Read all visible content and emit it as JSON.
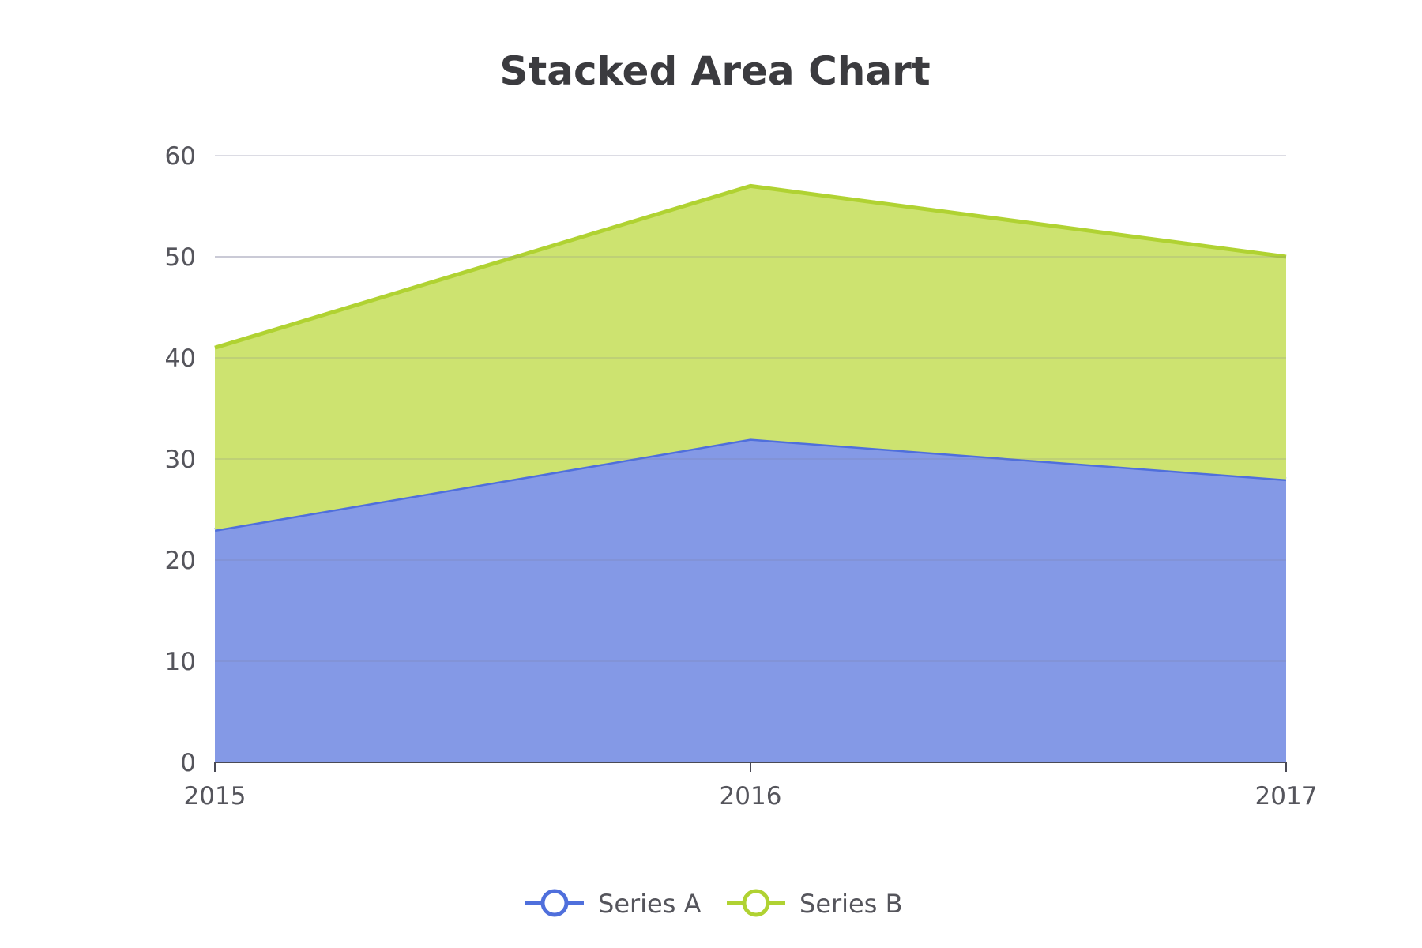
{
  "chart_data": {
    "type": "area",
    "stacked": true,
    "title": "Stacked Area Chart",
    "xlabel": "",
    "ylabel": "",
    "categories": [
      "2015",
      "2016",
      "2017"
    ],
    "series": [
      {
        "name": "Series A",
        "values": [
          23,
          32,
          28
        ],
        "color": "#4f6fdc",
        "fill": "#8499e6"
      },
      {
        "name": "Series B",
        "values": [
          18,
          25,
          22
        ],
        "color": "#b0d232",
        "fill": "#cde370"
      }
    ],
    "ylim": [
      0,
      60
    ],
    "yticks": [
      "0",
      "10",
      "20",
      "30",
      "40",
      "50",
      "60"
    ],
    "grid": true,
    "legend_position": "bottom-center"
  }
}
